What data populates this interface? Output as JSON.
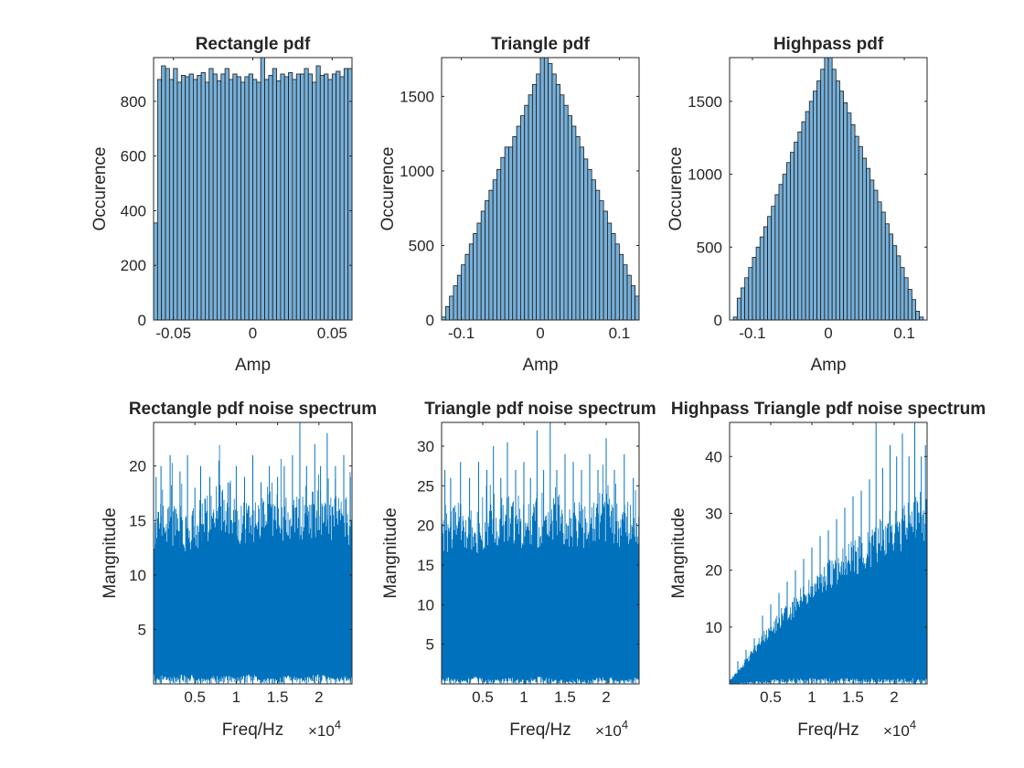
{
  "chart_data": [
    {
      "id": "p1",
      "type": "bar",
      "title": "Rectangle pdf",
      "xlabel": "Amp",
      "ylabel": "Occurence",
      "xlim": [
        -0.0625,
        0.0625
      ],
      "ylim": [
        0,
        960
      ],
      "xticks": [
        -0.05,
        0,
        0.05
      ],
      "xtick_labels": [
        "-0.05",
        "0",
        "0.05"
      ],
      "yticks": [
        0,
        200,
        400,
        600,
        800
      ],
      "ytick_labels": [
        "0",
        "200",
        "400",
        "600",
        "800"
      ],
      "bin_start": -0.0625,
      "bin_width": 0.0025,
      "values": [
        355,
        880,
        930,
        920,
        880,
        920,
        870,
        895,
        890,
        900,
        880,
        895,
        905,
        870,
        920,
        900,
        875,
        900,
        920,
        880,
        900,
        890,
        870,
        890,
        900,
        880,
        870,
        960,
        880,
        895,
        920,
        875,
        900,
        890,
        905,
        880,
        900,
        900,
        920,
        900,
        870,
        930,
        895,
        900,
        880,
        900,
        910,
        890,
        920,
        920
      ]
    },
    {
      "id": "p2",
      "type": "bar",
      "title": "Triangle pdf",
      "xlabel": "Amp",
      "ylabel": "Occurence",
      "xlim": [
        -0.125,
        0.125
      ],
      "ylim": [
        0,
        1760
      ],
      "xticks": [
        -0.1,
        0,
        0.1
      ],
      "xtick_labels": [
        "-0.1",
        "0",
        "0.1"
      ],
      "yticks": [
        0,
        500,
        1000,
        1500
      ],
      "ytick_labels": [
        "0",
        "500",
        "1000",
        "1500"
      ],
      "bin_start": -0.125,
      "bin_width": 0.005,
      "values": [
        20,
        90,
        160,
        230,
        300,
        370,
        440,
        510,
        580,
        650,
        730,
        800,
        870,
        940,
        1010,
        1090,
        1160,
        1160,
        1230,
        1300,
        1370,
        1440,
        1510,
        1580,
        1650,
        1760,
        1760,
        1720,
        1650,
        1580,
        1510,
        1440,
        1370,
        1300,
        1230,
        1160,
        1080,
        1010,
        940,
        870,
        800,
        730,
        650,
        580,
        510,
        440,
        370,
        300,
        230,
        160,
        90,
        20
      ]
    },
    {
      "id": "p3",
      "type": "bar",
      "title": "Highpass pdf",
      "xlabel": "Amp",
      "ylabel": "Occurence",
      "xlim": [
        -0.13,
        0.13
      ],
      "ylim": [
        0,
        1800
      ],
      "xticks": [
        -0.1,
        0,
        0.1
      ],
      "xtick_labels": [
        "-0.1",
        "0",
        "0.1"
      ],
      "yticks": [
        0,
        500,
        1000,
        1500
      ],
      "ytick_labels": [
        "0",
        "500",
        "1000",
        "1500"
      ],
      "bin_start": -0.125,
      "bin_width": 0.005,
      "values": [
        20,
        150,
        220,
        290,
        360,
        430,
        500,
        570,
        640,
        710,
        780,
        860,
        930,
        1000,
        1080,
        1150,
        1220,
        1290,
        1360,
        1430,
        1500,
        1570,
        1640,
        1720,
        1800,
        1800,
        1720,
        1640,
        1570,
        1490,
        1420,
        1340,
        1260,
        1190,
        1110,
        1040,
        960,
        890,
        810,
        740,
        660,
        590,
        510,
        440,
        360,
        290,
        210,
        140,
        60,
        20
      ]
    },
    {
      "id": "p4",
      "type": "line",
      "title": "Rectangle pdf noise spectrum",
      "xlabel": "Freq/Hz",
      "ylabel": "Mangnitude",
      "xlim": [
        0,
        24000
      ],
      "ylim": [
        0,
        24
      ],
      "xticks": [
        5000,
        10000,
        15000,
        20000
      ],
      "xtick_labels": [
        "0.5",
        "1",
        "1.5",
        "2"
      ],
      "yticks": [
        5,
        10,
        15,
        20
      ],
      "ytick_labels": [
        "5",
        "10",
        "15",
        "20"
      ],
      "exponent_label": "×10",
      "exponent_power": "4",
      "envelope_x": [
        0,
        2000,
        4000,
        6000,
        8000,
        10000,
        12000,
        14000,
        16000,
        18000,
        20000,
        22000,
        24000
      ],
      "envelope_low": [
        1,
        0.6,
        1,
        0.5,
        0.9,
        0.6,
        1,
        0.5,
        0.8,
        0.6,
        1,
        0.5,
        0.9
      ],
      "envelope_high": [
        14,
        15,
        14,
        15,
        16,
        15,
        15,
        16,
        15,
        15,
        16,
        15,
        15
      ],
      "peaks": [
        [
          300,
          19
        ],
        [
          900,
          20
        ],
        [
          2000,
          21
        ],
        [
          3200,
          19.5
        ],
        [
          4100,
          21
        ],
        [
          5000,
          18
        ],
        [
          5700,
          20
        ],
        [
          6800,
          19
        ],
        [
          7900,
          20.5
        ],
        [
          9000,
          18.5
        ],
        [
          10000,
          20
        ],
        [
          11000,
          19
        ],
        [
          12000,
          21
        ],
        [
          13000,
          18.5
        ],
        [
          14000,
          20
        ],
        [
          15000,
          19
        ],
        [
          15800,
          20
        ],
        [
          16800,
          21
        ],
        [
          17700,
          24
        ],
        [
          18500,
          20
        ],
        [
          19500,
          22
        ],
        [
          20200,
          20
        ],
        [
          21000,
          23
        ],
        [
          22000,
          20
        ],
        [
          23000,
          21
        ],
        [
          23800,
          19
        ]
      ]
    },
    {
      "id": "p5",
      "type": "line",
      "title": "Triangle pdf noise spectrum",
      "xlabel": "Freq/Hz",
      "ylabel": "Mangnitude",
      "xlim": [
        0,
        24000
      ],
      "ylim": [
        0,
        33
      ],
      "xticks": [
        5000,
        10000,
        15000,
        20000
      ],
      "xtick_labels": [
        "0.5",
        "1",
        "1.5",
        "2"
      ],
      "yticks": [
        5,
        10,
        15,
        20,
        25,
        30
      ],
      "ytick_labels": [
        "5",
        "10",
        "15",
        "20",
        "25",
        "30"
      ],
      "exponent_label": "×10",
      "exponent_power": "4",
      "envelope_x": [
        0,
        2000,
        4000,
        6000,
        8000,
        10000,
        12000,
        14000,
        16000,
        18000,
        20000,
        22000,
        24000
      ],
      "envelope_low": [
        1,
        0.6,
        1,
        0.5,
        0.9,
        0.6,
        1,
        0.5,
        0.8,
        0.6,
        1,
        0.5,
        0.9
      ],
      "envelope_high": [
        19,
        20,
        19,
        20,
        21,
        20,
        20,
        21,
        20,
        20,
        21,
        20,
        20
      ],
      "peaks": [
        [
          400,
          27
        ],
        [
          1100,
          26
        ],
        [
          2300,
          28
        ],
        [
          3400,
          26
        ],
        [
          4500,
          28
        ],
        [
          5500,
          27
        ],
        [
          6300,
          30
        ],
        [
          7200,
          26
        ],
        [
          8000,
          30.5
        ],
        [
          9000,
          27
        ],
        [
          10000,
          28
        ],
        [
          10800,
          26
        ],
        [
          11600,
          32
        ],
        [
          12400,
          27
        ],
        [
          13200,
          33
        ],
        [
          14000,
          27
        ],
        [
          15000,
          29
        ],
        [
          16000,
          28
        ],
        [
          17000,
          27
        ],
        [
          18000,
          29
        ],
        [
          19000,
          27
        ],
        [
          20000,
          31
        ],
        [
          21000,
          27
        ],
        [
          22200,
          29
        ],
        [
          23300,
          26
        ]
      ]
    },
    {
      "id": "p6",
      "type": "line",
      "title": "Highpass Triangle pdf noise spectrum",
      "xlabel": "Freq/Hz",
      "ylabel": "Mangnitude",
      "xlim": [
        0,
        24000
      ],
      "ylim": [
        0,
        46
      ],
      "xticks": [
        5000,
        10000,
        15000,
        20000
      ],
      "xtick_labels": [
        "0.5",
        "1",
        "1.5",
        "2"
      ],
      "yticks": [
        10,
        20,
        30,
        40
      ],
      "ytick_labels": [
        "10",
        "20",
        "30",
        "40"
      ],
      "exponent_label": "×10",
      "exponent_power": "4",
      "envelope_x": [
        0,
        2000,
        4000,
        6000,
        8000,
        10000,
        12000,
        14000,
        16000,
        18000,
        20000,
        22000,
        24000
      ],
      "envelope_low": [
        0,
        0.3,
        0.6,
        0.9,
        1,
        1,
        1,
        1,
        1,
        1,
        1,
        1,
        1
      ],
      "envelope_high": [
        0.5,
        4,
        8,
        11,
        14,
        17,
        19,
        21,
        23,
        25,
        27,
        28,
        29
      ],
      "peaks": [
        [
          1000,
          4
        ],
        [
          2000,
          6
        ],
        [
          3000,
          8
        ],
        [
          4000,
          12
        ],
        [
          5000,
          14
        ],
        [
          6000,
          16
        ],
        [
          7000,
          18
        ],
        [
          8000,
          20
        ],
        [
          9000,
          22
        ],
        [
          10000,
          24
        ],
        [
          11000,
          26
        ],
        [
          12000,
          27
        ],
        [
          13000,
          29
        ],
        [
          14000,
          31
        ],
        [
          15000,
          33
        ],
        [
          16000,
          34
        ],
        [
          17000,
          36
        ],
        [
          17800,
          46
        ],
        [
          18600,
          38
        ],
        [
          19500,
          42
        ],
        [
          20300,
          40
        ],
        [
          21000,
          44
        ],
        [
          21800,
          40
        ],
        [
          22500,
          46
        ],
        [
          23300,
          40
        ],
        [
          23800,
          42
        ]
      ]
    }
  ]
}
